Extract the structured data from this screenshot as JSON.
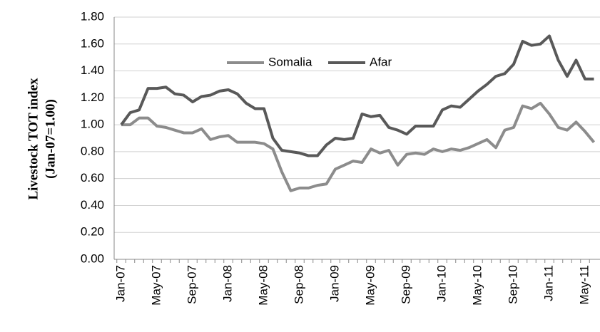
{
  "chart_data": {
    "type": "line",
    "y_label": [
      "Livestock TOT index",
      "(Jan-07=1.00)"
    ],
    "categories": [
      "Jan-07",
      null,
      null,
      null,
      "May-07",
      null,
      null,
      null,
      "Sep-07",
      null,
      null,
      null,
      "Jan-08",
      null,
      null,
      null,
      "May-08",
      null,
      null,
      null,
      "Sep-08",
      null,
      null,
      null,
      "Jan-09",
      null,
      null,
      null,
      "May-09",
      null,
      null,
      null,
      "Sep-09",
      null,
      null,
      null,
      "Jan-10",
      null,
      null,
      null,
      "May-10",
      null,
      null,
      null,
      "Sep-10",
      null,
      null,
      null,
      "Jan-11",
      null,
      null,
      null,
      "May-11",
      null
    ],
    "series": [
      {
        "name": "Somalia",
        "color": "#8c8c8c",
        "values": [
          1.0,
          1.0,
          1.05,
          1.05,
          0.99,
          0.98,
          0.96,
          0.94,
          0.94,
          0.97,
          0.89,
          0.91,
          0.92,
          0.87,
          0.87,
          0.87,
          0.86,
          0.82,
          0.65,
          0.51,
          0.53,
          0.53,
          0.55,
          0.56,
          0.67,
          0.7,
          0.73,
          0.72,
          0.82,
          0.79,
          0.81,
          0.7,
          0.78,
          0.79,
          0.78,
          0.82,
          0.8,
          0.82,
          0.81,
          0.83,
          0.86,
          0.89,
          0.83,
          0.96,
          0.98,
          1.14,
          1.12,
          1.16,
          1.08,
          0.98,
          0.96,
          1.02,
          0.95,
          0.87
        ]
      },
      {
        "name": "Afar",
        "color": "#595959",
        "values": [
          1.0,
          1.09,
          1.11,
          1.27,
          1.27,
          1.28,
          1.23,
          1.22,
          1.17,
          1.21,
          1.22,
          1.25,
          1.26,
          1.23,
          1.16,
          1.12,
          1.12,
          0.9,
          0.81,
          0.8,
          0.79,
          0.77,
          0.77,
          0.85,
          0.9,
          0.89,
          0.9,
          1.08,
          1.06,
          1.07,
          0.98,
          0.96,
          0.93,
          0.99,
          0.99,
          0.99,
          1.11,
          1.14,
          1.13,
          1.19,
          1.25,
          1.3,
          1.36,
          1.38,
          1.45,
          1.62,
          1.59,
          1.6,
          1.66,
          1.48,
          1.36,
          1.48,
          1.34,
          1.34
        ]
      }
    ],
    "ylim": [
      0,
      1.8
    ],
    "yticks": [
      {
        "value": 0,
        "label": "0.00"
      },
      {
        "value": 0.2,
        "label": "0.20"
      },
      {
        "value": 0.4,
        "label": "0.40"
      },
      {
        "value": 0.6,
        "label": "0.60"
      },
      {
        "value": 0.8,
        "label": "0.80"
      },
      {
        "value": 1.0,
        "label": "1.00"
      },
      {
        "value": 1.2,
        "label": "1.20"
      },
      {
        "value": 1.4,
        "label": "1.40"
      },
      {
        "value": 1.6,
        "label": "1.60"
      },
      {
        "value": 1.8,
        "label": "1.80"
      }
    ],
    "grid": true
  }
}
